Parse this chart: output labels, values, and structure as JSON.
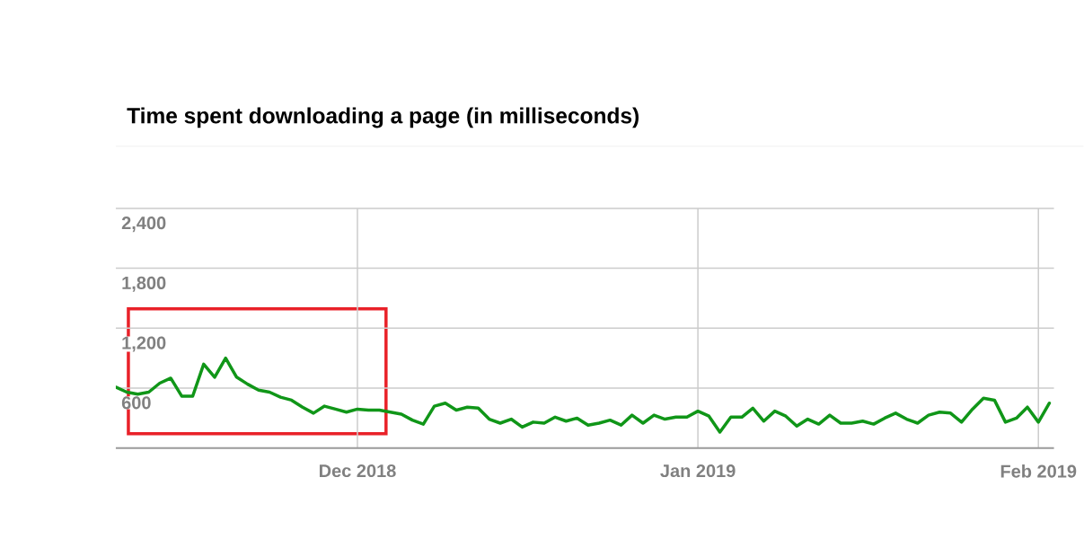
{
  "chart_data": {
    "type": "line",
    "title": "Time spent downloading a page (in milliseconds)",
    "x": [
      "2018-11-09",
      "2018-11-10",
      "2018-11-11",
      "2018-11-12",
      "2018-11-13",
      "2018-11-14",
      "2018-11-15",
      "2018-11-16",
      "2018-11-17",
      "2018-11-18",
      "2018-11-19",
      "2018-11-20",
      "2018-11-21",
      "2018-11-22",
      "2018-11-23",
      "2018-11-24",
      "2018-11-25",
      "2018-11-26",
      "2018-11-27",
      "2018-11-28",
      "2018-11-29",
      "2018-11-30",
      "2018-12-01",
      "2018-12-02",
      "2018-12-03",
      "2018-12-04",
      "2018-12-05",
      "2018-12-06",
      "2018-12-07",
      "2018-12-08",
      "2018-12-09",
      "2018-12-10",
      "2018-12-11",
      "2018-12-12",
      "2018-12-13",
      "2018-12-14",
      "2018-12-15",
      "2018-12-16",
      "2018-12-17",
      "2018-12-18",
      "2018-12-19",
      "2018-12-20",
      "2018-12-21",
      "2018-12-22",
      "2018-12-23",
      "2018-12-24",
      "2018-12-25",
      "2018-12-26",
      "2018-12-27",
      "2018-12-28",
      "2018-12-29",
      "2018-12-30",
      "2018-12-31",
      "2019-01-01",
      "2019-01-02",
      "2019-01-03",
      "2019-01-04",
      "2019-01-05",
      "2019-01-06",
      "2019-01-07",
      "2019-01-08",
      "2019-01-09",
      "2019-01-10",
      "2019-01-11",
      "2019-01-12",
      "2019-01-13",
      "2019-01-14",
      "2019-01-15",
      "2019-01-16",
      "2019-01-17",
      "2019-01-18",
      "2019-01-19",
      "2019-01-20",
      "2019-01-21",
      "2019-01-22",
      "2019-01-23",
      "2019-01-24",
      "2019-01-25",
      "2019-01-26",
      "2019-01-27",
      "2019-01-28",
      "2019-01-29",
      "2019-01-30",
      "2019-01-31",
      "2019-02-01",
      "2019-02-02"
    ],
    "series": [
      {
        "color": "#109618",
        "values": [
          610,
          560,
          540,
          560,
          650,
          700,
          520,
          520,
          840,
          710,
          900,
          710,
          640,
          580,
          560,
          510,
          480,
          410,
          350,
          420,
          390,
          360,
          390,
          380,
          380,
          360,
          340,
          280,
          240,
          420,
          450,
          380,
          410,
          400,
          290,
          250,
          290,
          210,
          260,
          250,
          310,
          270,
          300,
          230,
          250,
          280,
          230,
          330,
          250,
          330,
          290,
          310,
          310,
          370,
          320,
          160,
          310,
          310,
          400,
          270,
          370,
          320,
          220,
          290,
          240,
          330,
          250,
          250,
          270,
          240,
          300,
          350,
          290,
          250,
          330,
          360,
          350,
          260,
          390,
          500,
          480,
          260,
          300,
          410,
          260,
          450
        ]
      }
    ],
    "xlim": [
      "2018-11-09",
      "2019-02-02T10:00"
    ],
    "ylim": [
      0,
      2400
    ],
    "xticks": [
      {
        "value": "2018-12-01",
        "label": "Dec 2018"
      },
      {
        "value": "2019-01-01",
        "label": "Jan 2019"
      },
      {
        "value": "2019-02-01",
        "label": "Feb 2019"
      }
    ],
    "yticks": [
      600,
      {
        "value": 1200,
        "label": "1,200"
      },
      {
        "value": 1800,
        "label": "1,800"
      },
      {
        "value": 2400,
        "label": "2,400"
      }
    ],
    "grid": true,
    "marker": "none",
    "line_style": "solid"
  }
}
